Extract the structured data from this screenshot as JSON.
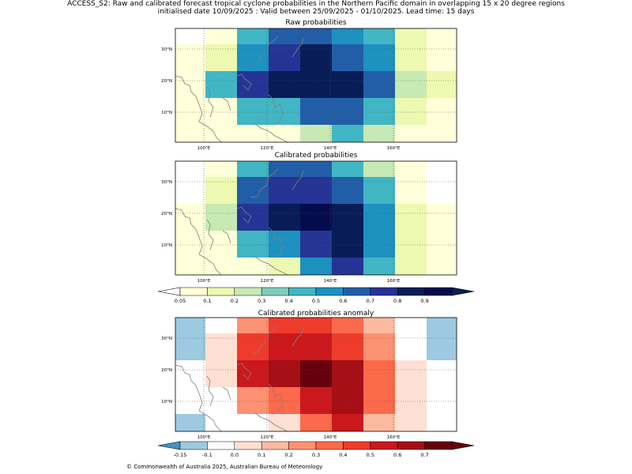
{
  "header": {
    "line1": "ACCESS_S2: Raw and calibrated forecast tropical cyclone probabilities in the Northern Pacific domain in overlapping 15 x 20 degree regions",
    "line2": "initialised date 10/09/2025 :  Valid between 25/09/2025 - 01/10/2025. Lead time: 15 days"
  },
  "map_axes": {
    "lon_ticks": [
      "100°E",
      "120°E",
      "140°E",
      "160°E"
    ],
    "lat_ticks": [
      "30°N",
      "20°N",
      "10°N"
    ]
  },
  "chart_data": [
    {
      "type": "heatmap",
      "title": "Raw probabilities",
      "rows_top_to_bottom": 5,
      "columns": 9,
      "cell_bins": [
        [
          0,
          1,
          5,
          7,
          7,
          6,
          5,
          2,
          1
        ],
        [
          1,
          2,
          6,
          8,
          9,
          7,
          6,
          2,
          1
        ],
        [
          1,
          5,
          8,
          9,
          9,
          9,
          7,
          3,
          2
        ],
        [
          1,
          1,
          5,
          5,
          7,
          7,
          5,
          2,
          1
        ],
        [
          1,
          1,
          1,
          1,
          3,
          5,
          3,
          1,
          1
        ]
      ]
    },
    {
      "type": "heatmap",
      "title": "Calibrated probabilities",
      "rows_top_to_bottom": 5,
      "columns": 9,
      "cell_bins": [
        [
          0,
          1,
          5,
          7,
          7,
          5,
          3,
          1,
          0
        ],
        [
          0,
          2,
          7,
          8,
          8,
          7,
          5,
          1,
          0
        ],
        [
          1,
          3,
          8,
          9,
          10,
          9,
          6,
          2,
          1
        ],
        [
          1,
          1,
          5,
          6,
          8,
          9,
          6,
          2,
          1
        ],
        [
          1,
          1,
          1,
          2,
          6,
          8,
          5,
          2,
          1
        ]
      ]
    },
    {
      "type": "heatmap",
      "title": "Calibrated probabilities anomaly",
      "rows_top_to_bottom": 5,
      "columns": 9,
      "cell_bins": [
        [
          1,
          2,
          5,
          7,
          7,
          6,
          4,
          2,
          1
        ],
        [
          1,
          3,
          7,
          8,
          8,
          7,
          5,
          2,
          1
        ],
        [
          2,
          3,
          8,
          9,
          10,
          9,
          6,
          3,
          2
        ],
        [
          2,
          2,
          5,
          6,
          8,
          9,
          6,
          3,
          2
        ],
        [
          1,
          2,
          2,
          3,
          6,
          8,
          4,
          3,
          2
        ]
      ]
    }
  ],
  "colorbars": {
    "probability": {
      "labels": [
        "0.05",
        "0.1",
        "0.2",
        "0.3",
        "0.4",
        "0.5",
        "0.6",
        "0.7",
        "0.8",
        "0.9"
      ],
      "colors": [
        "#ffffd9",
        "#edf8b1",
        "#c7e9b4",
        "#7fcdbb",
        "#41b6c4",
        "#1d91c0",
        "#225ea8",
        "#253494",
        "#081d58",
        "#040c4e"
      ],
      "under_color": "#ffffff",
      "over_color": "#081d58"
    },
    "anomaly": {
      "labels": [
        "-0.15",
        "-0.1",
        "0.0",
        "0.1",
        "0.2",
        "0.3",
        "0.4",
        "0.5",
        "0.6",
        "0.7"
      ],
      "colors": [
        "#9ecae1",
        "#ffffff",
        "#fee0d2",
        "#fcbba1",
        "#fc9272",
        "#fb6a4a",
        "#ef3b2c",
        "#cb181d",
        "#a50f15",
        "#67000d"
      ],
      "under_color": "#4292c6",
      "over_color": "#67000d"
    }
  },
  "panels": {
    "raw_title": "Raw probabilities",
    "calibrated_title": "Calibrated probabilities",
    "anomaly_title": "Calibrated probabilities anomaly"
  },
  "footer": "© Commonwealth of Australia 2025, Australian Bureau of Meteorology",
  "coastline_color": "#808080"
}
